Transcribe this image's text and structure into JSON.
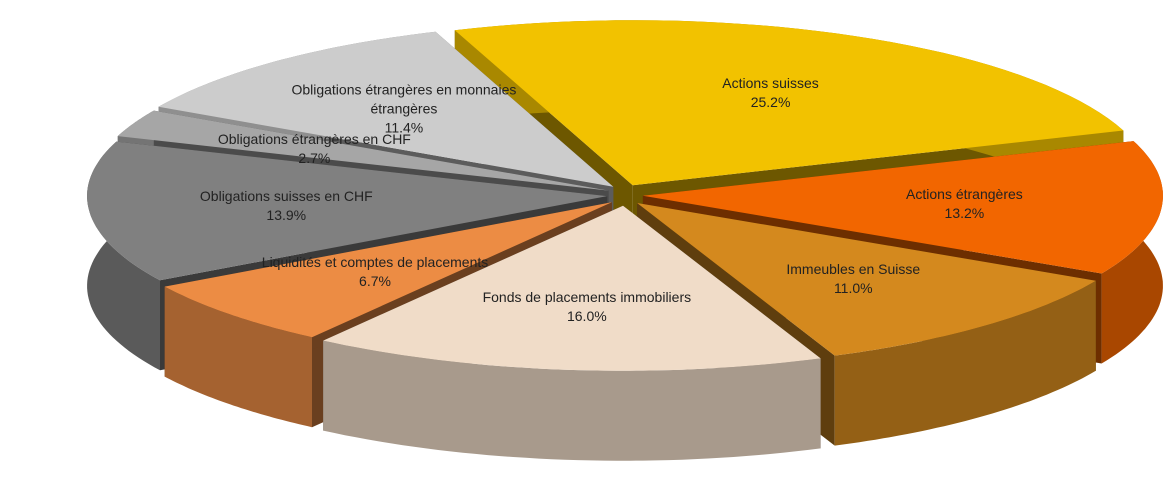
{
  "chart_data": {
    "type": "pie3d",
    "categories": [
      "Actions suisses",
      "Actions étrangères",
      "Immeubles en Suisse",
      "Fonds de placements immobiliers",
      "Liquidités et comptes de placements",
      "Obligations suisses en CHF",
      "Obligations étrangères en CHF",
      "Obligations étrangères en monnaies étrangères"
    ],
    "values": [
      25.2,
      13.2,
      11.0,
      16.0,
      6.7,
      13.9,
      2.7,
      11.4
    ],
    "value_labels": [
      "25.2%",
      "13.2%",
      "11.0%",
      "16.0%",
      "6.7%",
      "13.9%",
      "2.7%",
      "11.4%"
    ],
    "colors": [
      "#f2c200",
      "#f26600",
      "#d4891e",
      "#f0dcc8",
      "#ec8c44",
      "#808080",
      "#a6a6a6",
      "#cccccc"
    ]
  }
}
